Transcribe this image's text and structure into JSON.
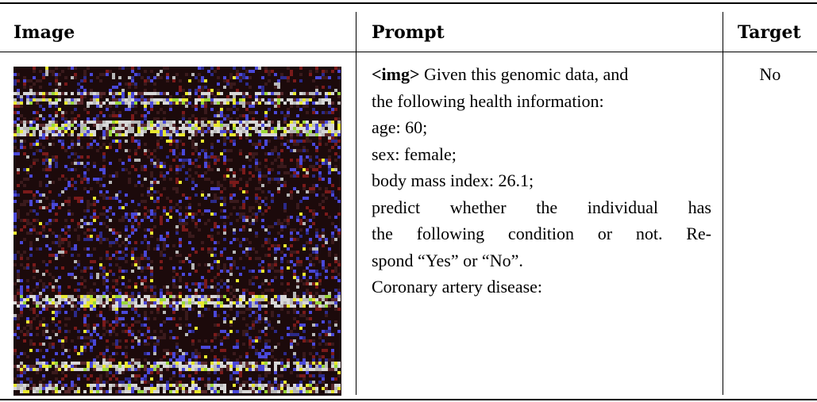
{
  "table": {
    "headers": {
      "image": "Image",
      "prompt": "Prompt",
      "target": "Target"
    },
    "row": {
      "image_description_icon": "genomic-data-image",
      "prompt": {
        "img_token": "<img>",
        "intro": " Given this genomic data, and",
        "line2": "the following health information:",
        "age": "age: 60;",
        "sex": "sex: female;",
        "bmi": "body mass index: 26.1;",
        "line6": "predict whether the individual has",
        "line7": "the following condition or not. Re-",
        "line8": "spond “Yes” or “No”.",
        "condition": "Coronary artery disease:"
      },
      "target": "No"
    }
  },
  "colors": {
    "genomic_background": "#1c0a0b",
    "genomic_palette": [
      "#3a1a1c",
      "#5a2a2e",
      "#2c2a8a",
      "#4a48d8",
      "#b8b8b8",
      "#d8d8d8",
      "#e8e830",
      "#9ad83a",
      "#7a1a1a"
    ]
  }
}
